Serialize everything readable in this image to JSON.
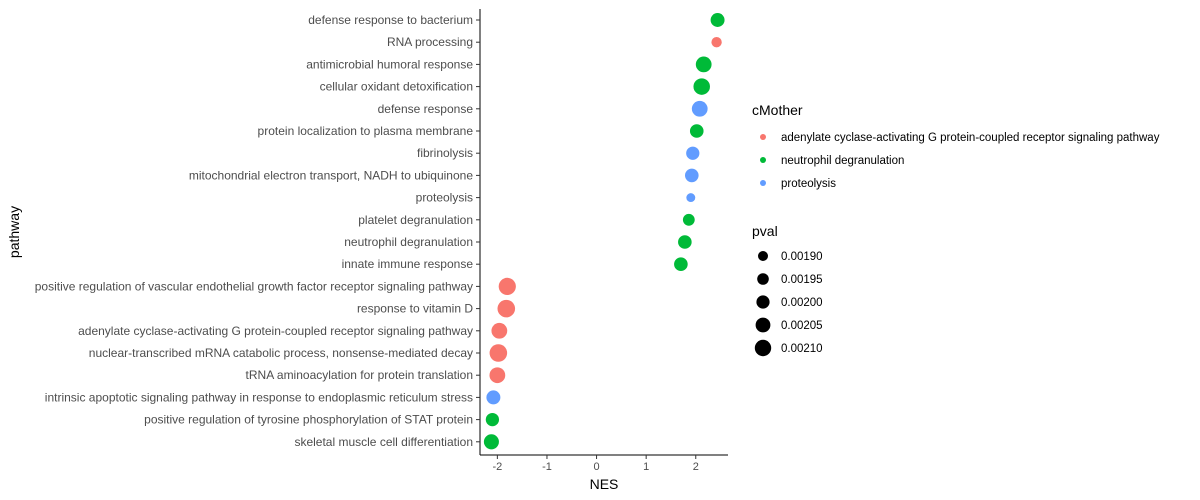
{
  "chart_data": {
    "type": "scatter",
    "title": "",
    "xlabel": "NES",
    "ylabel": "pathway",
    "xlim": [
      -2.35,
      2.65
    ],
    "xticks": [
      -2,
      -1,
      0,
      1,
      2
    ],
    "xtick_labels": [
      "-2",
      "-1",
      "0",
      "1",
      "2"
    ],
    "grid": false,
    "legend_position": "right",
    "color_legend": {
      "title": "cMother",
      "entries": [
        {
          "name": "adenylate cyclase-activating G protein-coupled receptor signaling pathway",
          "color": "#F8766D"
        },
        {
          "name": "neutrophil degranulation",
          "color": "#00BA38"
        },
        {
          "name": "proteolysis",
          "color": "#619CFF"
        }
      ]
    },
    "size_legend": {
      "title": "pval",
      "entries": [
        {
          "label": "0.00190",
          "value": 0.0019
        },
        {
          "label": "0.00195",
          "value": 0.00195
        },
        {
          "label": "0.00200",
          "value": 0.002
        },
        {
          "label": "0.00205",
          "value": 0.00205
        },
        {
          "label": "0.00210",
          "value": 0.0021
        }
      ]
    },
    "points": [
      {
        "pathway": "defense response to bacterium",
        "NES": 2.44,
        "pval": 0.00201,
        "cMother": "neutrophil degranulation"
      },
      {
        "pathway": "RNA processing",
        "NES": 2.42,
        "pval": 0.00191,
        "cMother": "adenylate cyclase-activating G protein-coupled receptor signaling pathway"
      },
      {
        "pathway": "antimicrobial humoral response",
        "NES": 2.16,
        "pval": 0.00206,
        "cMother": "neutrophil degranulation"
      },
      {
        "pathway": "cellular oxidant detoxification",
        "NES": 2.12,
        "pval": 0.00208,
        "cMother": "neutrophil degranulation"
      },
      {
        "pathway": "defense response",
        "NES": 2.08,
        "pval": 0.00206,
        "cMother": "proteolysis"
      },
      {
        "pathway": "protein localization to plasma membrane",
        "NES": 2.02,
        "pval": 0.002,
        "cMother": "neutrophil degranulation"
      },
      {
        "pathway": "fibrinolysis",
        "NES": 1.94,
        "pval": 0.00199,
        "cMother": "proteolysis"
      },
      {
        "pathway": "mitochondrial electron transport, NADH to ubiquinone",
        "NES": 1.92,
        "pval": 0.002,
        "cMother": "proteolysis"
      },
      {
        "pathway": "proteolysis",
        "NES": 1.9,
        "pval": 0.00187,
        "cMother": "proteolysis"
      },
      {
        "pathway": "platelet degranulation",
        "NES": 1.86,
        "pval": 0.00195,
        "cMother": "neutrophil degranulation"
      },
      {
        "pathway": "neutrophil degranulation",
        "NES": 1.78,
        "pval": 0.002,
        "cMother": "neutrophil degranulation"
      },
      {
        "pathway": "innate immune response",
        "NES": 1.7,
        "pval": 0.002,
        "cMother": "neutrophil degranulation"
      },
      {
        "pathway": "positive regulation of vascular endothelial growth factor receptor signaling pathway",
        "NES": -1.8,
        "pval": 0.0021,
        "cMother": "adenylate cyclase-activating G protein-coupled receptor signaling pathway"
      },
      {
        "pathway": "response to vitamin D",
        "NES": -1.82,
        "pval": 0.00211,
        "cMother": "adenylate cyclase-activating G protein-coupled receptor signaling pathway"
      },
      {
        "pathway": "adenylate cyclase-activating G protein-coupled receptor signaling pathway",
        "NES": -1.96,
        "pval": 0.00206,
        "cMother": "adenylate cyclase-activating G protein-coupled receptor signaling pathway"
      },
      {
        "pathway": "nuclear-transcribed mRNA catabolic process, nonsense-mediated decay",
        "NES": -1.98,
        "pval": 0.00211,
        "cMother": "adenylate cyclase-activating G protein-coupled receptor signaling pathway"
      },
      {
        "pathway": "tRNA aminoacylation for protein translation",
        "NES": -2.0,
        "pval": 0.00206,
        "cMother": "adenylate cyclase-activating G protein-coupled receptor signaling pathway"
      },
      {
        "pathway": "intrinsic apoptotic signaling pathway in response to endoplasmic reticulum stress",
        "NES": -2.08,
        "pval": 0.00201,
        "cMother": "proteolysis"
      },
      {
        "pathway": "positive regulation of tyrosine phosphorylation of STAT protein",
        "NES": -2.1,
        "pval": 0.00199,
        "cMother": "neutrophil degranulation"
      },
      {
        "pathway": "skeletal muscle cell differentiation",
        "NES": -2.12,
        "pval": 0.00204,
        "cMother": "neutrophil degranulation"
      }
    ]
  }
}
